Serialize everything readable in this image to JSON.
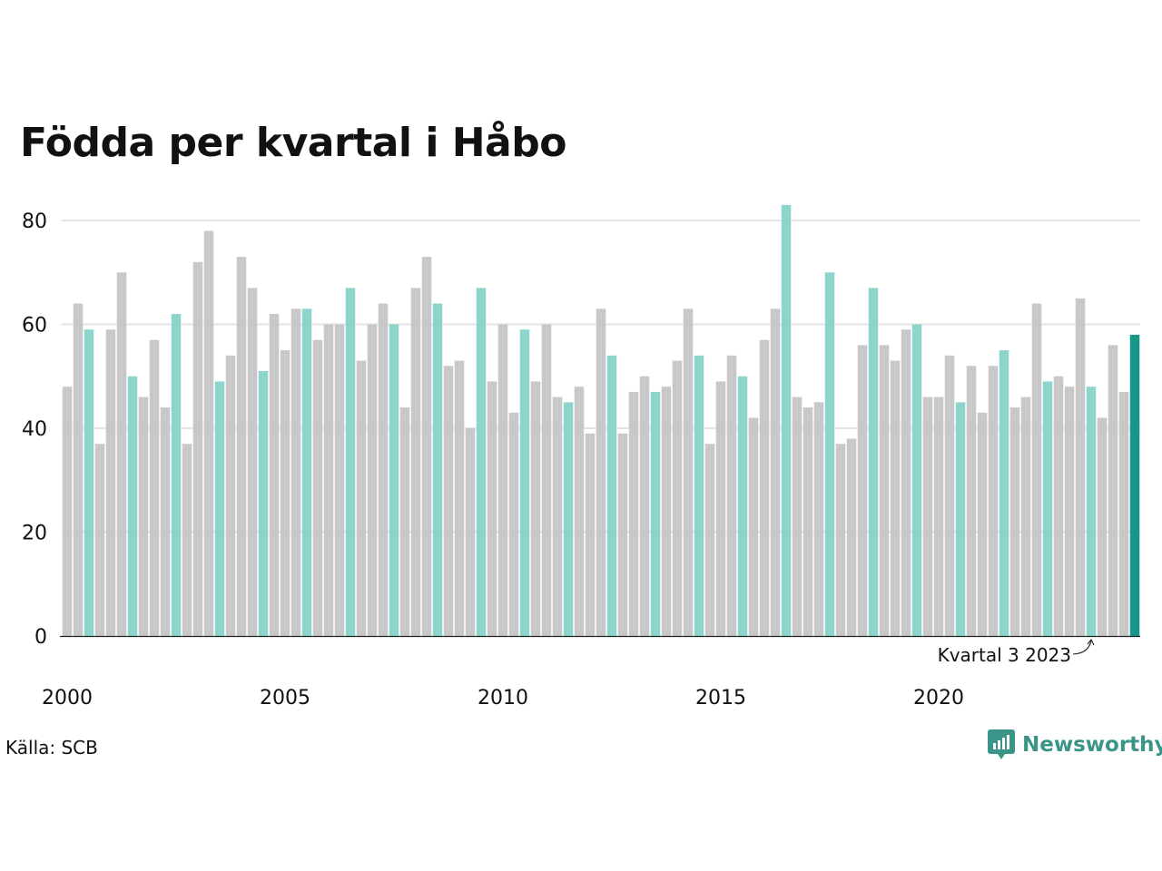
{
  "chart_data": {
    "type": "bar",
    "title": "Födda per kvartal i Håbo",
    "ylim": [
      0,
      85
    ],
    "yticks": [
      "0",
      "20",
      "40",
      "60",
      "80"
    ],
    "xtick_labels": [
      "2000",
      "2005",
      "2010",
      "2015",
      "2020"
    ],
    "grid": true,
    "annotation": "Kvartal 3 2023",
    "categories": [
      "2000K1",
      "2000K2",
      "2000K3",
      "2000K4",
      "2001K1",
      "2001K2",
      "2001K3",
      "2001K4",
      "2002K1",
      "2002K2",
      "2002K3",
      "2002K4",
      "2003K1",
      "2003K2",
      "2003K3",
      "2003K4",
      "2004K1",
      "2004K2",
      "2004K3",
      "2004K4",
      "2005K1",
      "2005K2",
      "2005K3",
      "2005K4",
      "2006K1",
      "2006K2",
      "2006K3",
      "2006K4",
      "2007K1",
      "2007K2",
      "2007K3",
      "2007K4",
      "2008K1",
      "2008K2",
      "2008K3",
      "2008K4",
      "2009K1",
      "2009K2",
      "2009K3",
      "2009K4",
      "2010K1",
      "2010K2",
      "2010K3",
      "2010K4",
      "2011K1",
      "2011K2",
      "2011K3",
      "2011K4",
      "2012K1",
      "2012K2",
      "2012K3",
      "2012K4",
      "2013K1",
      "2013K2",
      "2013K3",
      "2013K4",
      "2014K1",
      "2014K2",
      "2014K3",
      "2014K4",
      "2015K1",
      "2015K2",
      "2015K3",
      "2015K4",
      "2016K1",
      "2016K2",
      "2016K3",
      "2016K4",
      "2017K1",
      "2017K2",
      "2017K3",
      "2017K4",
      "2018K1",
      "2018K2",
      "2018K3",
      "2018K4",
      "2019K1",
      "2019K2",
      "2019K3",
      "2019K4",
      "2020K1",
      "2020K2",
      "2020K3",
      "2020K4",
      "2021K1",
      "2021K2",
      "2021K3",
      "2021K4",
      "2022K1",
      "2022K2",
      "2022K3",
      "2022K4",
      "2023K1",
      "2023K2",
      "2023K3",
      "2023K4",
      "2024K1",
      "2024K2",
      "2024K3"
    ],
    "values": [
      48,
      64,
      59,
      37,
      59,
      70,
      50,
      46,
      57,
      44,
      62,
      37,
      72,
      78,
      49,
      54,
      73,
      67,
      51,
      62,
      55,
      63,
      63,
      57,
      60,
      60,
      67,
      53,
      60,
      64,
      60,
      44,
      67,
      73,
      64,
      52,
      53,
      40,
      67,
      49,
      60,
      43,
      59,
      49,
      60,
      46,
      45,
      48,
      39,
      63,
      54,
      39,
      47,
      50,
      47,
      48,
      53,
      63,
      54,
      37,
      49,
      54,
      50,
      42,
      57,
      63,
      83,
      46,
      44,
      45,
      70,
      37,
      38,
      56,
      67,
      56,
      53,
      59,
      60,
      46,
      46,
      54,
      45,
      52,
      43,
      52,
      55,
      44,
      46,
      64,
      49,
      50,
      48,
      65,
      48,
      42,
      56,
      47,
      58
    ],
    "colors": {
      "other_quarters": "#c8c8c8",
      "same_quarter": "#8dd5cc",
      "latest": "#17968a",
      "grid": "#e3e3e3",
      "axis": "#222222",
      "logo": "#3a9487"
    }
  },
  "source": "Källa: SCB",
  "logo": {
    "name": "Newsworthy",
    "icon": "newsworthy-logo-icon"
  }
}
